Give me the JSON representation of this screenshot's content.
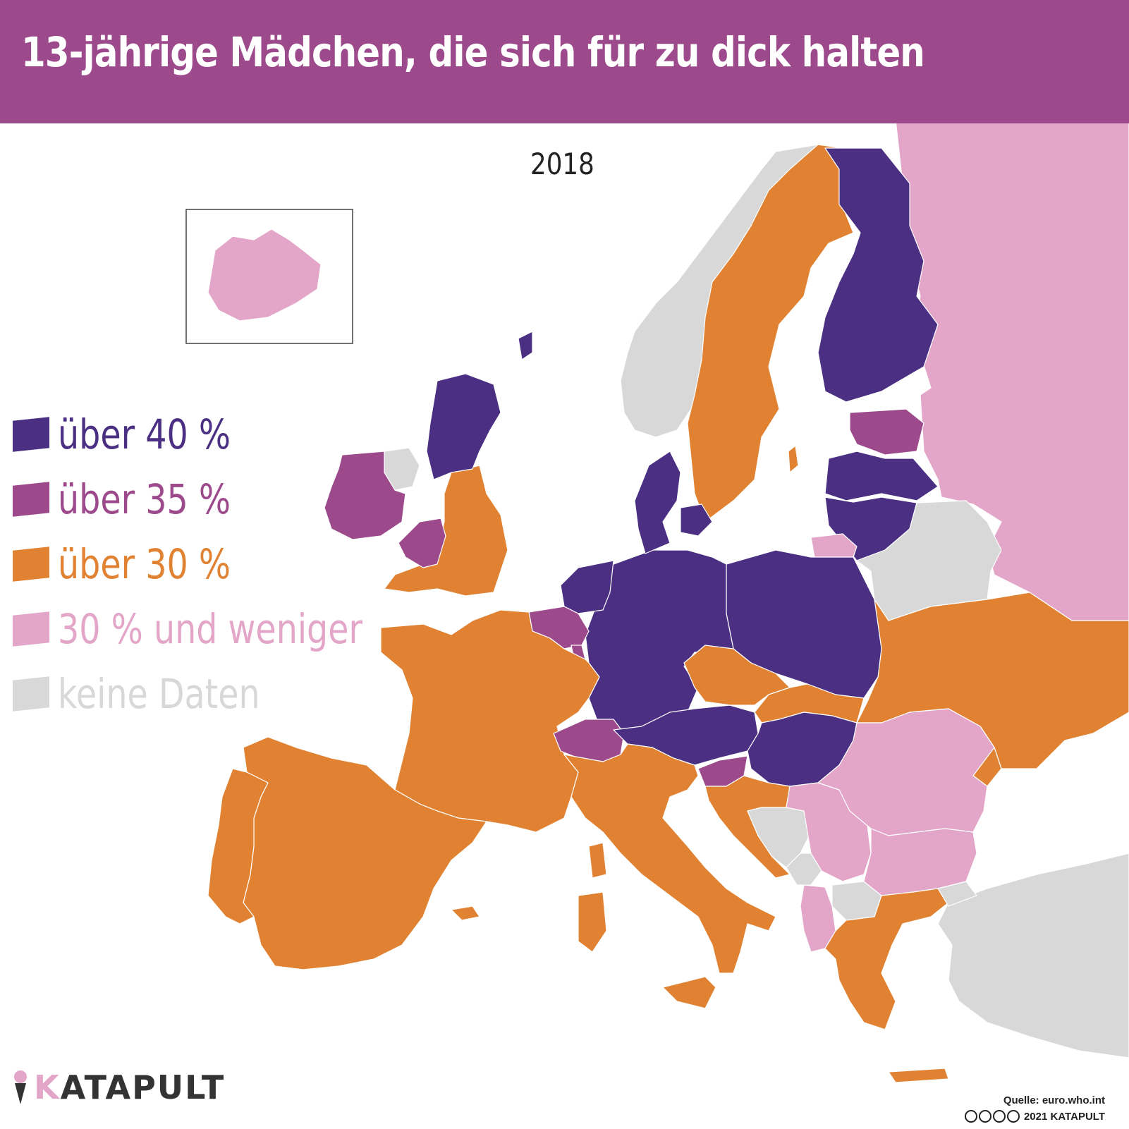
{
  "title": "13-jährige Mädchen, die sich für zu dick halten",
  "year": "2018",
  "colors": {
    "title_bar": "#9d4a8c",
    "over_40": "#4a2f82",
    "over_35": "#9d4a8c",
    "over_30": "#e08232",
    "30_and_less": "#e3a5c8",
    "no_data": "#d8d8d8"
  },
  "legend": [
    {
      "label": "über 40 %",
      "color": "#4a2f82"
    },
    {
      "label": "über 35 %",
      "color": "#9d4a8c"
    },
    {
      "label": "über 30 %",
      "color": "#e08232"
    },
    {
      "label": "30 % und weniger",
      "color": "#e3a5c8"
    },
    {
      "label": "keine Daten",
      "color": "#d8d8d8"
    }
  ],
  "regions": [
    {
      "country": "Island",
      "category": "30 % und weniger"
    },
    {
      "country": "Schottland",
      "category": "über 40 %"
    },
    {
      "country": "Irland",
      "category": "über 35 %"
    },
    {
      "country": "Nordirland",
      "category": "keine Daten"
    },
    {
      "country": "Wales",
      "category": "über 35 %"
    },
    {
      "country": "England",
      "category": "über 30 %"
    },
    {
      "country": "Norwegen",
      "category": "keine Daten"
    },
    {
      "country": "Schweden",
      "category": "über 30 %"
    },
    {
      "country": "Finnland",
      "category": "über 40 %"
    },
    {
      "country": "Russland",
      "category": "30 % und weniger"
    },
    {
      "country": "Estland",
      "category": "über 35 %"
    },
    {
      "country": "Lettland",
      "category": "über 40 %"
    },
    {
      "country": "Litauen",
      "category": "über 40 %"
    },
    {
      "country": "Belarus",
      "category": "keine Daten"
    },
    {
      "country": "Dänemark",
      "category": "über 40 %"
    },
    {
      "country": "Niederlande",
      "category": "über 40 %"
    },
    {
      "country": "Belgien",
      "category": "über 35 %"
    },
    {
      "country": "Luxemburg",
      "category": "über 35 %"
    },
    {
      "country": "Deutschland",
      "category": "über 40 %"
    },
    {
      "country": "Polen",
      "category": "über 40 %"
    },
    {
      "country": "Frankreich",
      "category": "über 30 %"
    },
    {
      "country": "Schweiz",
      "category": "über 35 %"
    },
    {
      "country": "Österreich",
      "category": "über 40 %"
    },
    {
      "country": "Tschechien",
      "category": "über 30 %"
    },
    {
      "country": "Slowakei",
      "category": "über 30 %"
    },
    {
      "country": "Ungarn",
      "category": "über 40 %"
    },
    {
      "country": "Slowenien",
      "category": "über 35 %"
    },
    {
      "country": "Kroatien",
      "category": "über 30 %"
    },
    {
      "country": "Ukraine",
      "category": "über 30 %"
    },
    {
      "country": "Rumänien",
      "category": "30 % und weniger"
    },
    {
      "country": "Moldau",
      "category": "über 30 %"
    },
    {
      "country": "Serbien",
      "category": "30 % und weniger"
    },
    {
      "country": "Bosnien und Herzegowina",
      "category": "keine Daten"
    },
    {
      "country": "Albanien",
      "category": "30 % und weniger"
    },
    {
      "country": "Nordmazedonien",
      "category": "keine Daten"
    },
    {
      "country": "Bulgarien",
      "category": "30 % und weniger"
    },
    {
      "country": "Griechenland",
      "category": "über 30 %"
    },
    {
      "country": "Türkei",
      "category": "keine Daten"
    },
    {
      "country": "Italien",
      "category": "über 30 %"
    },
    {
      "country": "Spanien",
      "category": "über 30 %"
    },
    {
      "country": "Portugal",
      "category": "über 30 %"
    }
  ],
  "logo": {
    "k": "K",
    "rest": "ATAPULT"
  },
  "source": "Quelle: euro.who.int",
  "copyright": "2021 KATAPULT",
  "license_icons": [
    "cc",
    "by",
    "nc",
    "nd"
  ]
}
